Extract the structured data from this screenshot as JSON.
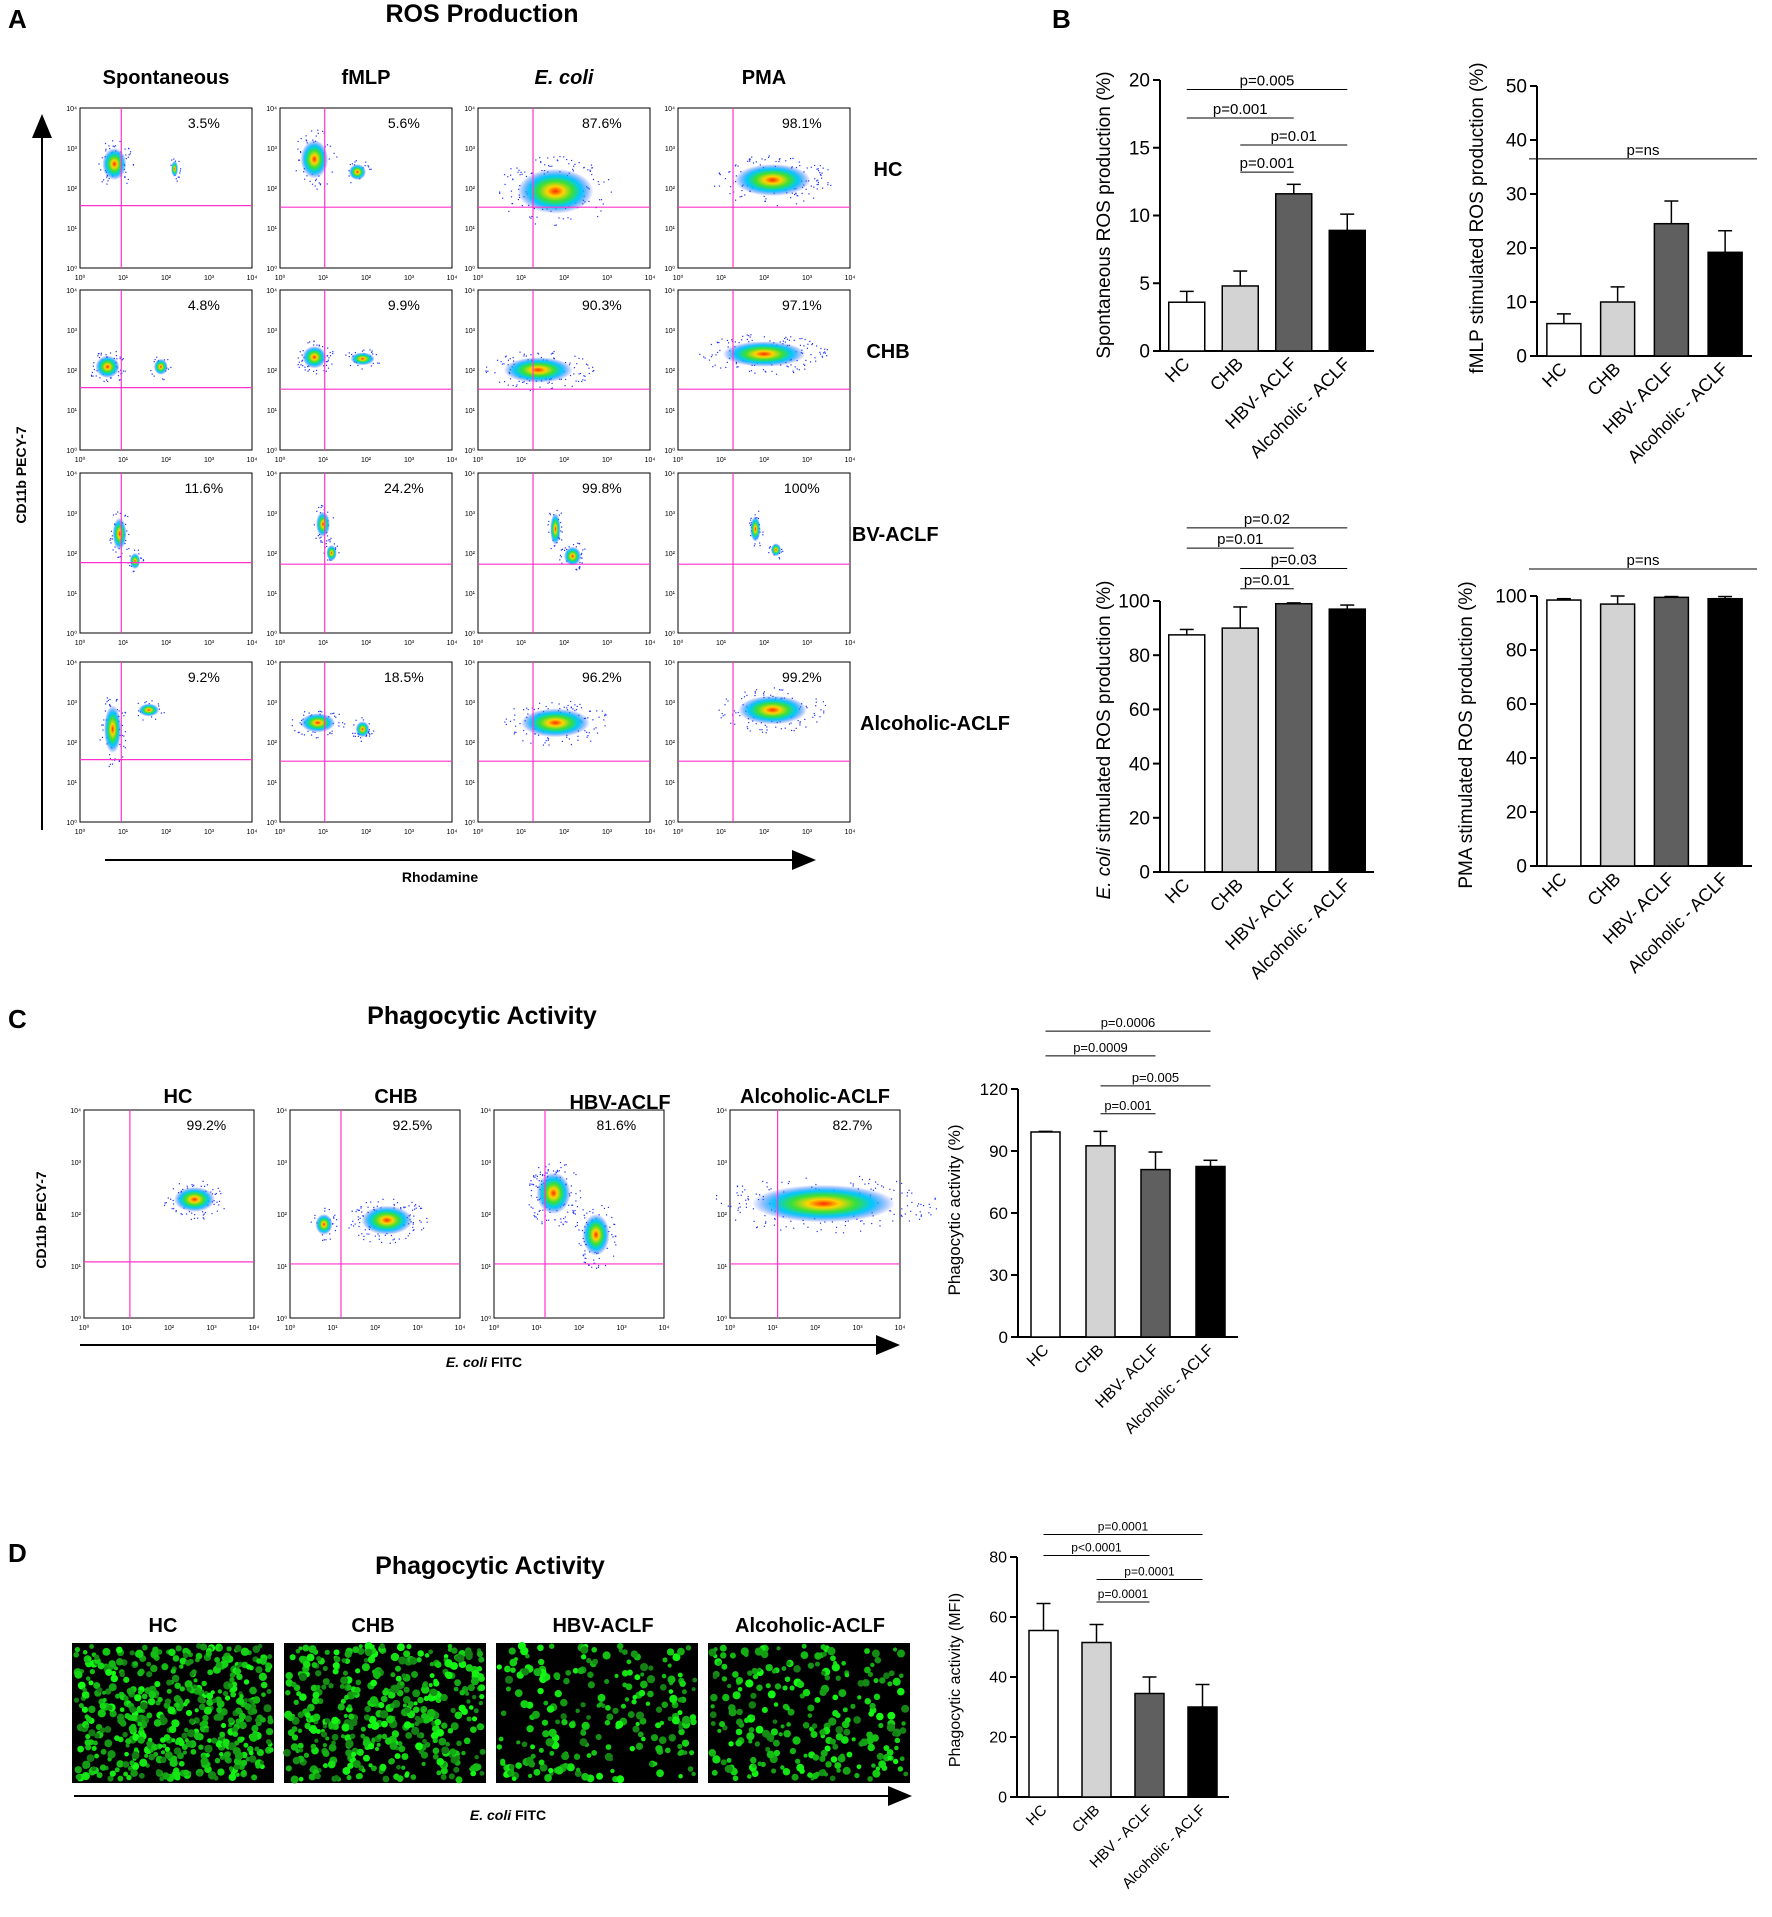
{
  "panel_labels": [
    "A",
    "B",
    "C",
    "D"
  ],
  "colors": {
    "group_fills": [
      "#ffffff",
      "#d3d3d3",
      "#5f5f5f",
      "#000000"
    ],
    "gate": "#ff33cc"
  },
  "panelA": {
    "title": "ROS Production",
    "columns": [
      "Spontaneous",
      "fMLP",
      "E. coli",
      "PMA"
    ],
    "rows": [
      "HC",
      "CHB",
      "HBV-ACLF",
      "Alcoholic-ACLF"
    ],
    "percentages": [
      [
        "3.5%",
        "5.6%",
        "87.6%",
        "98.1%"
      ],
      [
        "4.8%",
        "9.9%",
        "90.3%",
        "97.1%"
      ],
      [
        "11.6%",
        "24.2%",
        "99.8%",
        "100%"
      ],
      [
        "9.2%",
        "18.5%",
        "96.2%",
        "99.2%"
      ]
    ],
    "ylabel": "CD11b PECY-7",
    "xlabel": "Rhodamine",
    "ticks": [
      "10⁰",
      "10¹",
      "10²",
      "10³",
      "10⁴"
    ]
  },
  "panelC": {
    "title": "Phagocytic Activity",
    "columns": [
      "HC",
      "CHB",
      "HBV-ACLF",
      "Alcoholic-ACLF"
    ],
    "percentages": [
      "99.2%",
      "92.5%",
      "81.6%",
      "82.7%"
    ],
    "ylabel": "CD11b PECY-7",
    "xlabel_italic": "E. coli",
    "xlabel_rest": " FITC"
  },
  "panelD": {
    "title": "Phagocytic Activity",
    "columns": [
      "HC",
      "CHB",
      "HBV-ACLF",
      "Alcoholic-ACLF"
    ],
    "xlabel_italic": "E. coli",
    "xlabel_rest": " FITC",
    "cell_density": [
      1.0,
      0.85,
      0.45,
      0.5
    ]
  },
  "chart_data": [
    {
      "type": "bar",
      "panel": "B",
      "categories": [
        "HC",
        "CHB",
        "HBV- ACLF",
        "Alcoholic - ACLF"
      ],
      "values": [
        3.6,
        4.8,
        11.6,
        8.9
      ],
      "errors": [
        0.8,
        1.1,
        0.7,
        1.2
      ],
      "ylabel": "Spontaneous ROS production (%)",
      "ylim": [
        0,
        20
      ],
      "yticks": [
        0,
        5,
        10,
        15,
        20
      ],
      "annotations": [
        {
          "text": "p=0.005",
          "from": 0,
          "to": 3,
          "y": 19.3
        },
        {
          "text": "p=0.001",
          "from": 0,
          "to": 2,
          "y": 17.2
        },
        {
          "text": "p=0.01",
          "from": 1,
          "to": 3,
          "y": 15.2
        },
        {
          "text": "p=0.001",
          "from": 1,
          "to": 2,
          "y": 13.2
        }
      ]
    },
    {
      "type": "bar",
      "panel": "B",
      "categories": [
        "HC",
        "CHB",
        "HBV- ACLF",
        "Alcoholic - ACLF"
      ],
      "values": [
        6.0,
        10.0,
        24.5,
        19.2
      ],
      "errors": [
        1.8,
        2.8,
        4.2,
        4.0
      ],
      "ylabel": "fMLP stimulated ROS production (%)",
      "ylim": [
        0,
        50
      ],
      "yticks": [
        0,
        10,
        20,
        30,
        40,
        50
      ],
      "annotations": [
        {
          "text": "p=ns",
          "from": 0,
          "to": 3,
          "y": 36.5,
          "wide": true
        }
      ]
    },
    {
      "type": "bar",
      "panel": "B",
      "categories": [
        "HC",
        "CHB",
        "HBV- ACLF",
        "Alcoholic - ACLF"
      ],
      "values": [
        87.5,
        90.0,
        99.0,
        97.0
      ],
      "errors": [
        2.0,
        7.8,
        0.3,
        1.5
      ],
      "ylabel_italic": "E. coli",
      "ylabel": " stimulated ROS production (%)",
      "ylim": [
        0,
        100
      ],
      "yticks": [
        0,
        20,
        40,
        60,
        80,
        100
      ],
      "annotations": [
        {
          "text": "p=0.02",
          "from": 0,
          "to": 3,
          "y": 127
        },
        {
          "text": "p=0.01",
          "from": 0,
          "to": 2,
          "y": 119.5
        },
        {
          "text": "p=0.03",
          "from": 1,
          "to": 3,
          "y": 112
        },
        {
          "text": "p=0.01",
          "from": 1,
          "to": 2,
          "y": 104.5
        }
      ]
    },
    {
      "type": "bar",
      "panel": "B",
      "categories": [
        "HC",
        "CHB",
        "HBV- ACLF",
        "Alcoholic - ACLF"
      ],
      "values": [
        98.5,
        97.0,
        99.5,
        99.0
      ],
      "errors": [
        0.5,
        3.0,
        0.3,
        0.8
      ],
      "ylabel": "PMA stimulated ROS production (%)",
      "ylim": [
        0,
        100
      ],
      "yticks": [
        0,
        20,
        40,
        60,
        80,
        100
      ],
      "annotations": [
        {
          "text": "p=ns",
          "from": 0,
          "to": 3,
          "y": 110,
          "wide": true
        }
      ]
    },
    {
      "type": "bar",
      "panel": "C",
      "categories": [
        "HC",
        "CHB",
        "HBV- ACLF",
        "Alcoholic - ACLF"
      ],
      "values": [
        99.2,
        92.5,
        81.0,
        82.5
      ],
      "errors": [
        0.3,
        7.0,
        8.5,
        3.0
      ],
      "ylabel": "Phagocytic activity (%)",
      "ylim": [
        0,
        120
      ],
      "yticks": [
        0,
        30,
        60,
        90,
        120
      ],
      "annotations": [
        {
          "text": "p=0.0006",
          "from": 0,
          "to": 3,
          "y": 148
        },
        {
          "text": "p=0.0009",
          "from": 0,
          "to": 2,
          "y": 136
        },
        {
          "text": "p=0.005",
          "from": 1,
          "to": 3,
          "y": 121.5
        },
        {
          "text": "p=0.001",
          "from": 1,
          "to": 2,
          "y": 108
        }
      ]
    },
    {
      "type": "bar",
      "panel": "D",
      "categories": [
        "HC",
        "CHB",
        "HBV - ACLF",
        "Alcoholic - ACLF"
      ],
      "values": [
        55.5,
        51.5,
        34.5,
        30.0
      ],
      "errors": [
        9.0,
        6.0,
        5.5,
        7.5
      ],
      "ylabel": "Phagocytic activity (MFI)",
      "ylim": [
        0,
        80
      ],
      "yticks": [
        0,
        20,
        40,
        60,
        80
      ],
      "annotations": [
        {
          "text": "p=0.0001",
          "from": 0,
          "to": 3,
          "y": 87.5
        },
        {
          "text": "p<0.0001",
          "from": 0,
          "to": 2,
          "y": 80.5
        },
        {
          "text": "p=0.0001",
          "from": 1,
          "to": 3,
          "y": 72.5
        },
        {
          "text": "p=0.0001",
          "from": 1,
          "to": 2,
          "y": 65
        }
      ]
    }
  ]
}
